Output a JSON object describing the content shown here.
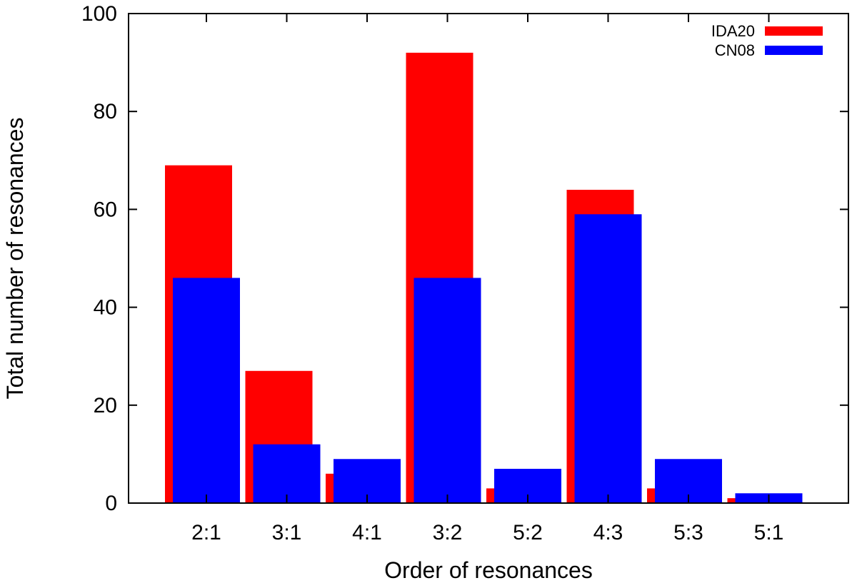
{
  "chart_data": {
    "type": "bar",
    "xlabel": "Order of resonances",
    "ylabel": "Total number of resonances",
    "ylim": [
      0,
      100
    ],
    "yticks": [
      0,
      20,
      40,
      60,
      80,
      100
    ],
    "categories": [
      "2:1",
      "3:1",
      "4:1",
      "3:2",
      "5:2",
      "4:3",
      "5:3",
      "5:1"
    ],
    "series": [
      {
        "name": "IDA20",
        "color": "#ff0000",
        "values": [
          69,
          27,
          6,
          92,
          3,
          64,
          3,
          1
        ]
      },
      {
        "name": "CN08",
        "color": "#0000ff",
        "values": [
          46,
          12,
          9,
          46,
          7,
          59,
          9,
          2
        ]
      }
    ],
    "legend_position": "top-right",
    "grid": false
  }
}
